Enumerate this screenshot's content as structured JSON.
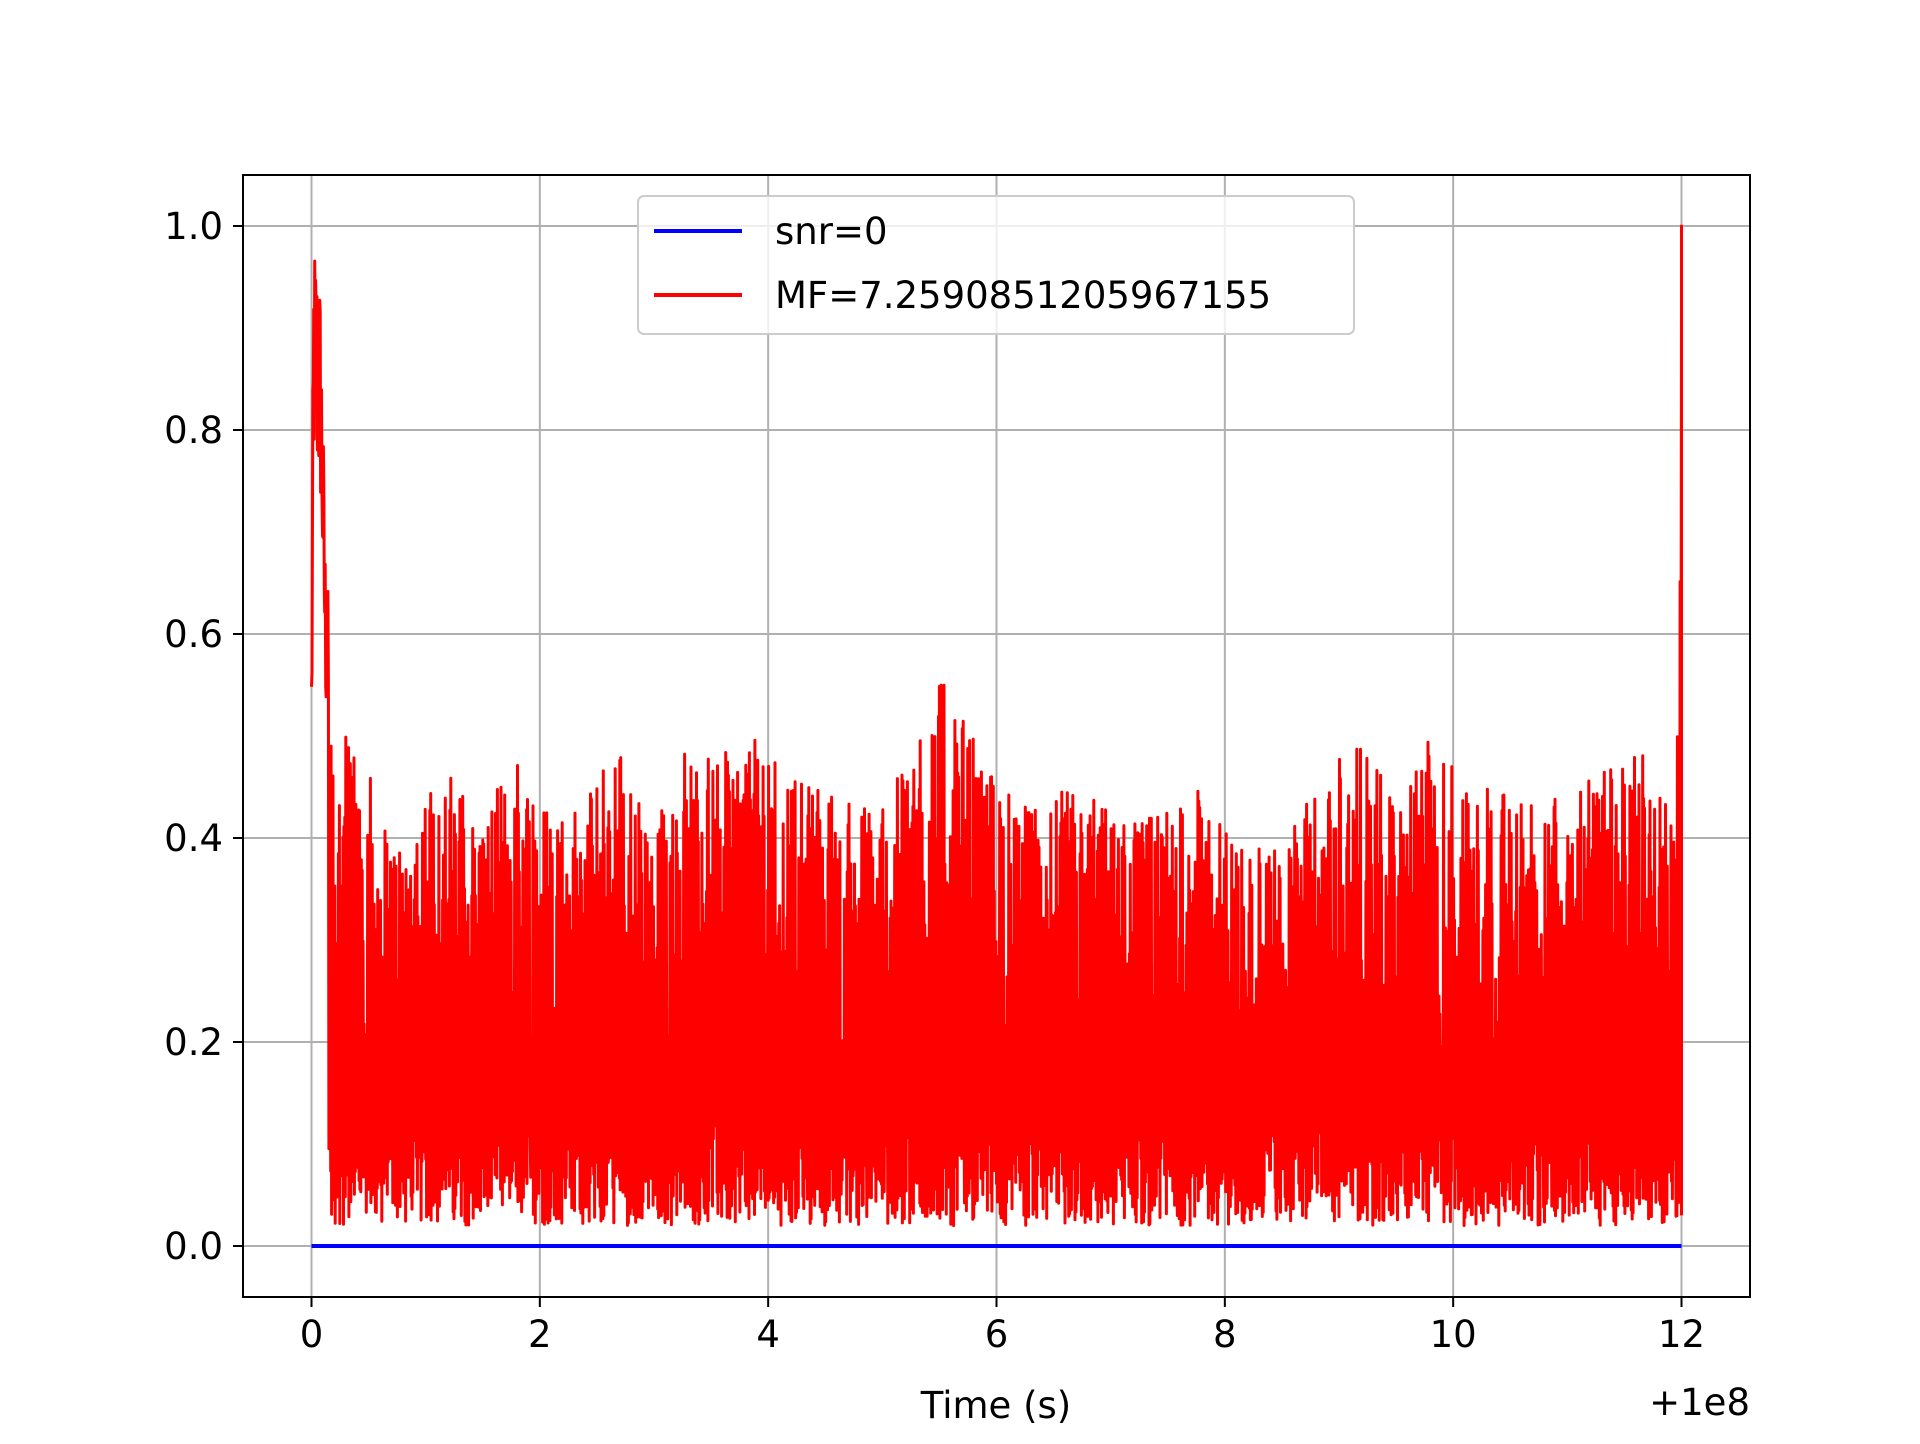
{
  "chart_data": {
    "type": "line",
    "title": "",
    "xlabel": "Time (s)",
    "ylabel": "",
    "x_offset_label": "+1e8",
    "xlim": [
      -0.6,
      12.6
    ],
    "ylim": [
      -0.05,
      1.05
    ],
    "x_ticks": [
      0,
      2,
      4,
      6,
      8,
      10,
      12
    ],
    "x_tick_labels": [
      "0",
      "2",
      "4",
      "6",
      "8",
      "10",
      "12"
    ],
    "y_ticks": [
      0.0,
      0.2,
      0.4,
      0.6,
      0.8,
      1.0
    ],
    "y_tick_labels": [
      "0.0",
      "0.2",
      "0.4",
      "0.6",
      "0.8",
      "1.0"
    ],
    "grid": true,
    "legend_position": "top-center",
    "colors": {
      "snr": "#0000ff",
      "mf": "#ff0000",
      "grid": "#b0b0b0",
      "axes": "#000000"
    },
    "series": [
      {
        "name": "snr=0",
        "color": "#0000ff",
        "x": [
          0,
          12
        ],
        "values": [
          0,
          0
        ]
      },
      {
        "name": "MF=7.2590851205967155",
        "color": "#ff0000",
        "description_of_peaks": "noise between ~0.0 and ~0.55, peaks of 1.0 at t=0 and t=12",
        "x": [
          0,
          0.02,
          0.05,
          0.08,
          0.12,
          0.2,
          0.3,
          0.4,
          0.6,
          0.8,
          1.0,
          1.2,
          1.5,
          1.8,
          2.1,
          2.4,
          2.65,
          3.0,
          3.2,
          3.5,
          3.9,
          4.2,
          4.5,
          4.8,
          5.1,
          5.45,
          5.8,
          6.0,
          6.3,
          6.6,
          6.9,
          7.2,
          7.5,
          7.8,
          8.1,
          8.4,
          8.7,
          9.05,
          9.3,
          9.6,
          9.75,
          9.9,
          10.2,
          10.5,
          10.8,
          11.1,
          11.4,
          11.65,
          11.8,
          11.95,
          12.0
        ],
        "values": [
          0.6,
          1.0,
          0.98,
          0.95,
          0.7,
          0.52,
          0.5,
          0.52,
          0.42,
          0.4,
          0.46,
          0.47,
          0.42,
          0.49,
          0.44,
          0.43,
          0.51,
          0.4,
          0.5,
          0.48,
          0.5,
          0.47,
          0.45,
          0.43,
          0.45,
          0.57,
          0.5,
          0.46,
          0.43,
          0.45,
          0.44,
          0.42,
          0.43,
          0.45,
          0.4,
          0.39,
          0.43,
          0.51,
          0.47,
          0.44,
          0.5,
          0.49,
          0.46,
          0.44,
          0.45,
          0.47,
          0.47,
          0.5,
          0.46,
          0.4,
          1.0
        ]
      }
    ]
  }
}
